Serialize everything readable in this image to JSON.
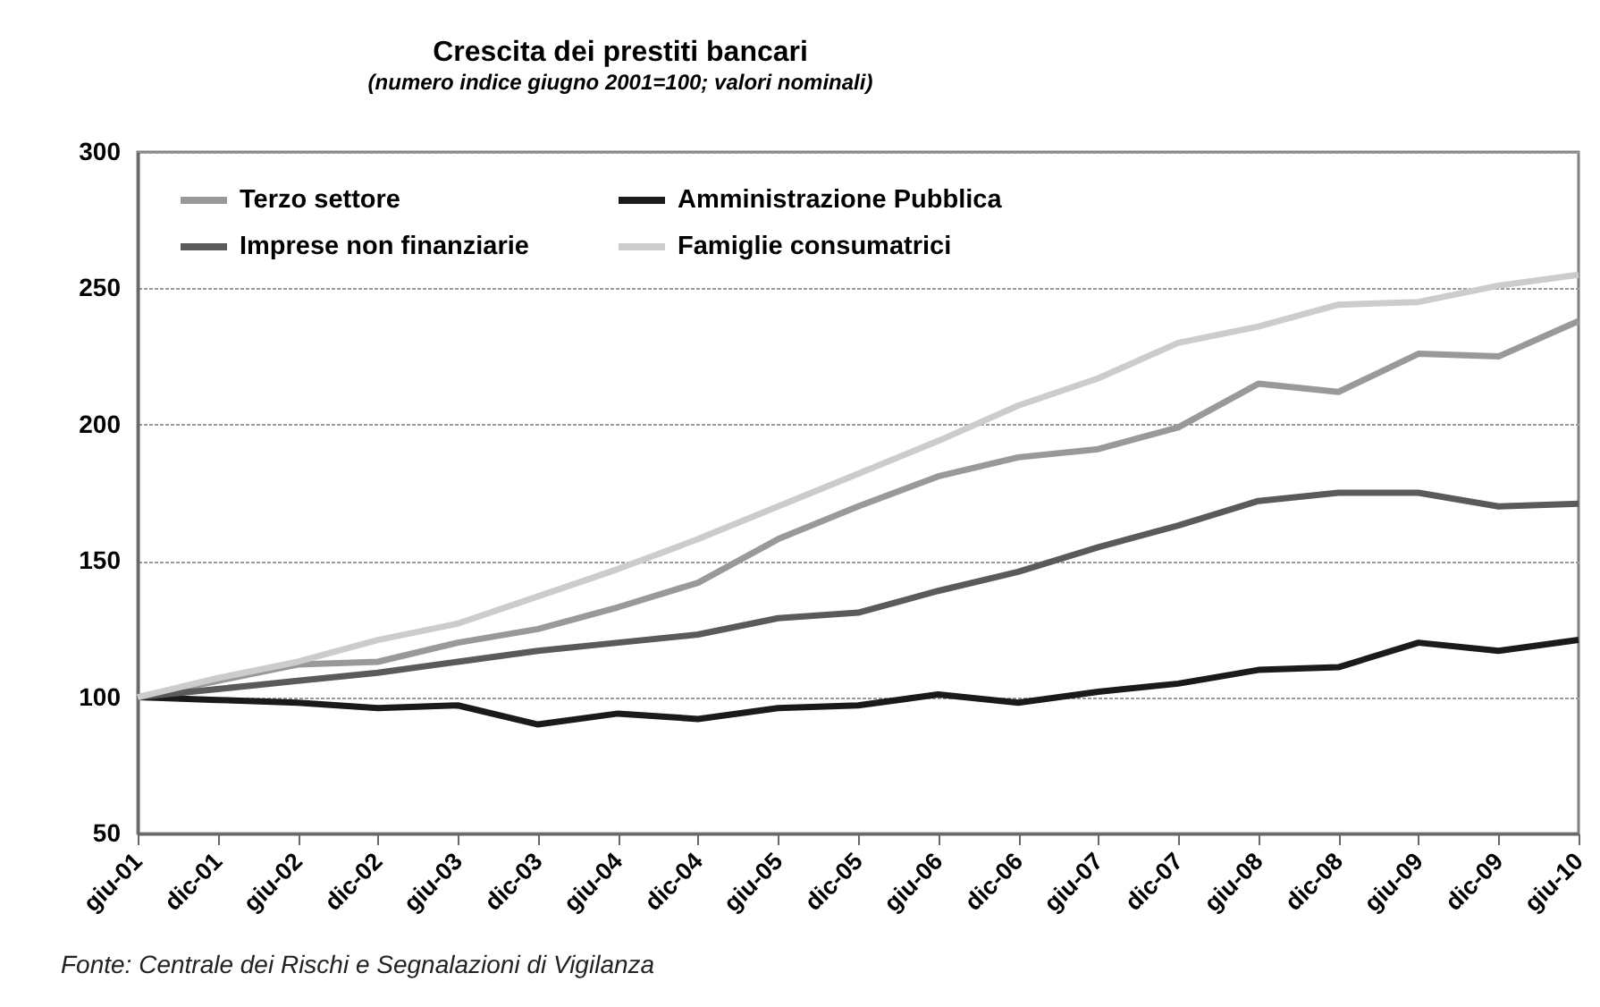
{
  "chart_data": {
    "type": "line",
    "title": "Crescita dei prestiti bancari",
    "subtitle": "(numero indice giugno 2001=100; valori nominali)",
    "categories": [
      "giu-01",
      "dic-01",
      "giu-02",
      "dic-02",
      "giu-03",
      "dic-03",
      "giu-04",
      "dic-04",
      "giu-05",
      "dic-05",
      "giu-06",
      "dic-06",
      "giu-07",
      "dic-07",
      "giu-08",
      "dic-08",
      "giu-09",
      "dic-09",
      "giu-10"
    ],
    "series": [
      {
        "name": "Terzo settore",
        "color": "#999999",
        "values": [
          100,
          106,
          112,
          113,
          120,
          125,
          133,
          142,
          158,
          170,
          181,
          188,
          191,
          199,
          215,
          212,
          226,
          225,
          238
        ]
      },
      {
        "name": "Amministrazione Pubblica",
        "color": "#1a1a1a",
        "values": [
          100,
          99,
          98,
          96,
          97,
          90,
          94,
          92,
          96,
          97,
          101,
          98,
          102,
          105,
          110,
          111,
          120,
          117,
          121
        ]
      },
      {
        "name": "Imprese non finanziarie",
        "color": "#5a5a5a",
        "values": [
          100,
          103,
          106,
          109,
          113,
          117,
          120,
          123,
          129,
          131,
          139,
          146,
          155,
          163,
          172,
          175,
          175,
          170,
          171
        ]
      },
      {
        "name": "Famiglie consumatrici",
        "color": "#cccccc",
        "values": [
          100,
          107,
          113,
          121,
          127,
          137,
          147,
          158,
          170,
          182,
          194,
          207,
          217,
          230,
          236,
          244,
          245,
          251,
          255
        ]
      }
    ],
    "ylim": [
      50,
      300
    ],
    "yticks": [
      50,
      100,
      150,
      200,
      250,
      300
    ],
    "grid": "y",
    "legend": "top left",
    "line_style": "solid",
    "annotations": [
      "Fonte: Centrale dei Rischi e Segnalazioni di Vigilanza"
    ]
  }
}
